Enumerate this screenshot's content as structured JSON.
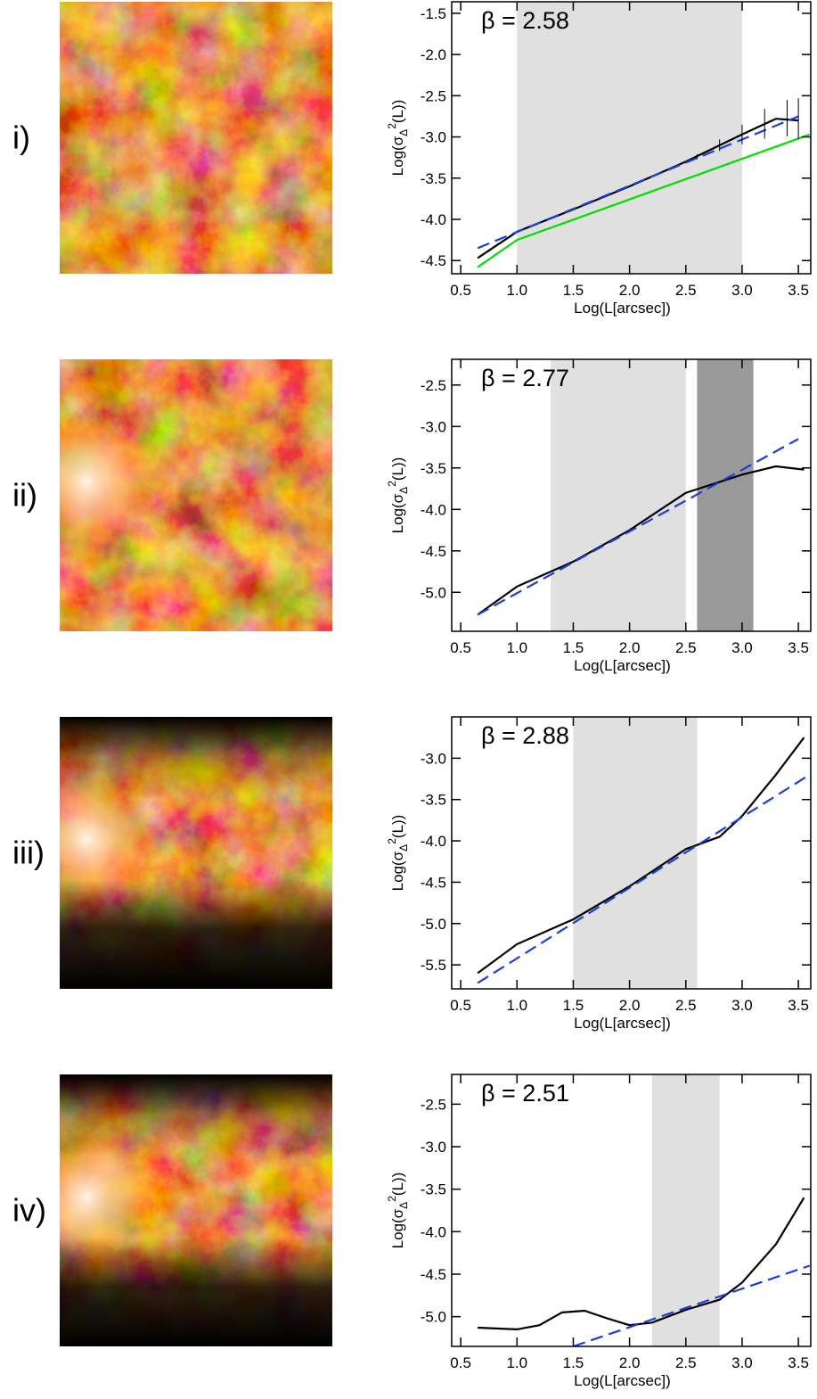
{
  "chart_data": [
    {
      "type": "line",
      "label": "i)",
      "annotation": "β = 2.58",
      "ylabel": [
        "Log(σ",
        "Δ",
        "2",
        "(L))"
      ],
      "xlabel": "Log(L[arcsec])",
      "xlim": [
        0.42,
        3.61
      ],
      "ylim": [
        -4.66,
        -1.36
      ],
      "xticks": [
        0.5,
        {
          "value": 1,
          "label": "1.0"
        },
        1.5,
        {
          "value": 2,
          "label": "2.0"
        },
        2.5,
        {
          "value": 3,
          "label": "3.0"
        },
        3.5
      ],
      "yticks": [
        -1.5,
        {
          "value": -2,
          "label": "-2.0"
        },
        -2.5,
        {
          "value": -3,
          "label": "-3.0"
        },
        -3.5,
        {
          "value": -4,
          "label": "-4.0"
        },
        -4.5
      ],
      "shaded": [
        {
          "range": [
            1.0,
            3.0
          ],
          "color": "#e0e0e0"
        }
      ],
      "series": [
        {
          "color": "#00e000",
          "style": "solid",
          "x": [
            0.65,
            1.0,
            3.6
          ],
          "values": [
            -4.58,
            -4.25,
            -2.97
          ]
        },
        {
          "color": "#000000",
          "style": "solid",
          "x": [
            0.65,
            1.0,
            1.5,
            2.0,
            2.5,
            3.0,
            3.3,
            3.5
          ],
          "values": [
            -4.47,
            -4.15,
            -3.88,
            -3.6,
            -3.3,
            -2.97,
            -2.78,
            -2.8
          ]
        },
        {
          "color": "#1a3fd8",
          "style": "dashed",
          "x": [
            0.65,
            3.5
          ],
          "values": [
            -4.35,
            -2.75
          ]
        },
        {
          "color": "#000000",
          "style": "errorbar",
          "x": [
            2.6,
            2.8,
            3.0,
            3.2,
            3.4,
            3.5
          ],
          "values": [
            -3.24,
            -3.1,
            -2.97,
            -2.84,
            -2.77,
            -2.78
          ],
          "errors": [
            0.03,
            0.07,
            0.12,
            0.18,
            0.22,
            0.25
          ]
        }
      ]
    },
    {
      "type": "line",
      "label": "ii)",
      "annotation": "β = 2.77",
      "ylabel": [
        "Log(σ",
        "Δ",
        "2",
        "(L))"
      ],
      "xlabel": "Log(L[arcsec])",
      "xlim": [
        0.42,
        3.61
      ],
      "ylim": [
        -5.47,
        -2.19
      ],
      "xticks": [
        0.5,
        {
          "value": 1,
          "label": "1.0"
        },
        1.5,
        {
          "value": 2,
          "label": "2.0"
        },
        2.5,
        {
          "value": 3,
          "label": "3.0"
        },
        3.5
      ],
      "yticks": [
        -2.5,
        {
          "value": -3,
          "label": "-3.0"
        },
        -3.5,
        {
          "value": -4,
          "label": "-4.0"
        },
        -4.5,
        {
          "value": -5,
          "label": "-5.0"
        }
      ],
      "shaded": [
        {
          "range": [
            1.3,
            2.5
          ],
          "color": "#e0e0e0"
        },
        {
          "range": [
            2.6,
            3.1
          ],
          "color": "#999999"
        }
      ],
      "series": [
        {
          "color": "#000000",
          "style": "solid",
          "x": [
            0.65,
            1.0,
            1.5,
            2.0,
            2.5,
            3.0,
            3.3,
            3.55
          ],
          "values": [
            -5.27,
            -4.93,
            -4.63,
            -4.25,
            -3.8,
            -3.58,
            -3.48,
            -3.52
          ]
        },
        {
          "color": "#1a3fd8",
          "style": "dashed",
          "x": [
            0.65,
            3.5
          ],
          "values": [
            -5.27,
            -3.15
          ]
        }
      ]
    },
    {
      "type": "line",
      "label": "iii)",
      "annotation": "β = 2.88",
      "ylabel": [
        "Log(σ",
        "Δ",
        "2",
        "(L))"
      ],
      "xlabel": "Log(L[arcsec])",
      "xlim": [
        0.42,
        3.61
      ],
      "ylim": [
        -5.79,
        -2.5
      ],
      "xticks": [
        0.5,
        {
          "value": 1,
          "label": "1.0"
        },
        1.5,
        {
          "value": 2,
          "label": "2.0"
        },
        2.5,
        {
          "value": 3,
          "label": "3.0"
        },
        3.5
      ],
      "yticks": [
        {
          "value": -3,
          "label": "-3.0"
        },
        -3.5,
        {
          "value": -4,
          "label": "-4.0"
        },
        -4.5,
        {
          "value": -5,
          "label": "-5.0"
        },
        -5.5
      ],
      "shaded": [
        {
          "range": [
            1.5,
            2.6
          ],
          "color": "#e0e0e0"
        }
      ],
      "series": [
        {
          "color": "#000000",
          "style": "solid",
          "x": [
            0.65,
            1.0,
            1.5,
            2.0,
            2.5,
            2.8,
            3.0,
            3.3,
            3.55
          ],
          "values": [
            -5.6,
            -5.25,
            -4.95,
            -4.55,
            -4.1,
            -3.95,
            -3.7,
            -3.2,
            -2.75
          ]
        },
        {
          "color": "#1a3fd8",
          "style": "dashed",
          "x": [
            0.65,
            3.6
          ],
          "values": [
            -5.72,
            -3.2
          ]
        }
      ]
    },
    {
      "type": "line",
      "label": "iv)",
      "annotation": "β = 2.51",
      "ylabel": [
        "Log(σ",
        "Δ",
        "2",
        "(L))"
      ],
      "xlabel": "Log(L[arcsec])",
      "xlim": [
        0.42,
        3.61
      ],
      "ylim": [
        -5.35,
        -2.15
      ],
      "xticks": [
        0.5,
        {
          "value": 1,
          "label": "1.0"
        },
        1.5,
        {
          "value": 2,
          "label": "2.0"
        },
        2.5,
        {
          "value": 3,
          "label": "3.0"
        },
        3.5
      ],
      "yticks": [
        -2.5,
        {
          "value": -3,
          "label": "-3.0"
        },
        -3.5,
        {
          "value": -4,
          "label": "-4.0"
        },
        -4.5,
        {
          "value": -5,
          "label": "-5.0"
        }
      ],
      "shaded": [
        {
          "range": [
            2.2,
            2.8
          ],
          "color": "#e0e0e0"
        }
      ],
      "series": [
        {
          "color": "#000000",
          "style": "solid",
          "x": [
            0.65,
            1.0,
            1.2,
            1.4,
            1.6,
            1.8,
            2.0,
            2.2,
            2.5,
            2.8,
            3.0,
            3.3,
            3.55
          ],
          "values": [
            -5.13,
            -5.15,
            -5.1,
            -4.95,
            -4.93,
            -5.02,
            -5.1,
            -5.07,
            -4.92,
            -4.8,
            -4.6,
            -4.15,
            -3.6
          ]
        },
        {
          "color": "#1a3fd8",
          "style": "dashed",
          "x": [
            1.5,
            3.6
          ],
          "values": [
            -5.35,
            -4.4
          ]
        }
      ]
    }
  ]
}
